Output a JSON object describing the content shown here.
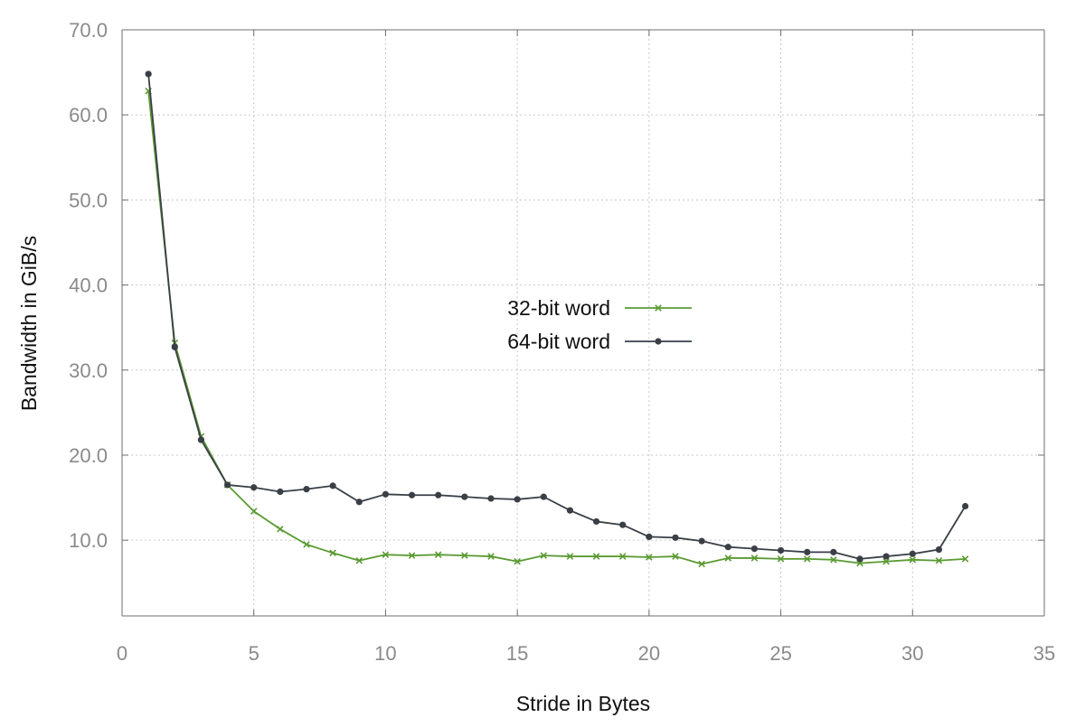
{
  "chart_data": {
    "type": "line",
    "title": "",
    "xlabel": "Stride in Bytes",
    "ylabel": "Bandwidth in GiB/s",
    "xlim": [
      0,
      35
    ],
    "ylim": [
      1.1,
      70
    ],
    "xticks": [
      0,
      5,
      10,
      15,
      20,
      25,
      30,
      35
    ],
    "xtick_labels": [
      "0",
      "5",
      "10",
      "15",
      "20",
      "25",
      "30",
      "35"
    ],
    "yticks": [
      10,
      20,
      30,
      40,
      50,
      60,
      70
    ],
    "ytick_labels": [
      "10.0",
      "20.0",
      "30.0",
      "40.0",
      "50.0",
      "60.0",
      "70.0"
    ],
    "grid": true,
    "legend_position": "center",
    "x": [
      1,
      2,
      3,
      4,
      5,
      6,
      7,
      8,
      9,
      10,
      11,
      12,
      13,
      14,
      15,
      16,
      17,
      18,
      19,
      20,
      21,
      22,
      23,
      24,
      25,
      26,
      27,
      28,
      29,
      30,
      31,
      32
    ],
    "series": [
      {
        "name": "32-bit word",
        "color": "#5a9a32",
        "marker": "x",
        "values": [
          62.8,
          33.2,
          22.2,
          16.5,
          13.4,
          11.3,
          9.5,
          8.5,
          7.6,
          8.3,
          8.2,
          8.3,
          8.2,
          8.1,
          7.5,
          8.2,
          8.1,
          8.1,
          8.1,
          8.0,
          8.1,
          7.2,
          7.9,
          7.9,
          7.8,
          7.8,
          7.7,
          7.3,
          7.5,
          7.7,
          7.6,
          7.8
        ]
      },
      {
        "name": "64-bit word",
        "color": "#3a3f47",
        "marker": "circle",
        "values": [
          64.8,
          32.7,
          21.8,
          16.5,
          16.2,
          15.7,
          16.0,
          16.4,
          14.5,
          15.4,
          15.3,
          15.3,
          15.1,
          14.9,
          14.8,
          15.1,
          13.5,
          12.2,
          11.8,
          10.4,
          10.3,
          9.9,
          9.2,
          9.0,
          8.8,
          8.6,
          8.6,
          7.8,
          8.1,
          8.4,
          8.9,
          14.0
        ]
      }
    ]
  }
}
